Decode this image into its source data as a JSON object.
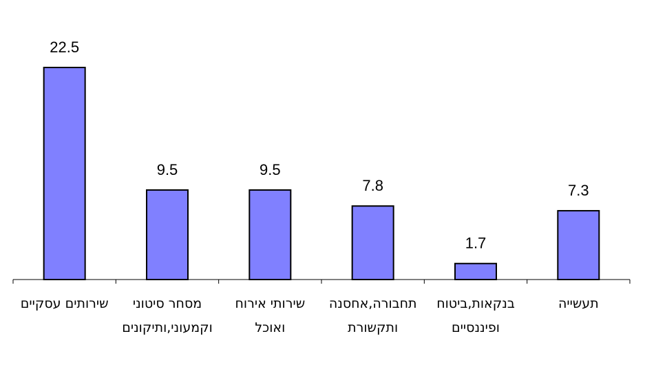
{
  "chart_data": {
    "type": "bar",
    "title": "",
    "xlabel": "",
    "ylabel": "",
    "ylim": [
      0,
      22.5
    ],
    "grid": false,
    "legend": "none",
    "bar_color": "#8080ff",
    "bar_edge_color": "#000000",
    "categories": [
      [
        "שירותים עסקיים"
      ],
      [
        "מסחר סיטוני",
        "וקמעוני,ותיקונים"
      ],
      [
        "שירותי אירוח",
        "ואוכל"
      ],
      [
        "תחבורה,אחסנה",
        "ותקשורת"
      ],
      [
        "בנקאות,ביטוח",
        "ופיננסיים"
      ],
      [
        "תעשייה"
      ]
    ],
    "values": [
      22.5,
      9.5,
      9.5,
      7.8,
      1.7,
      7.3
    ],
    "value_labels": [
      "22.5",
      "9.5",
      "9.5",
      "7.8",
      "1.7",
      "7.3"
    ]
  }
}
